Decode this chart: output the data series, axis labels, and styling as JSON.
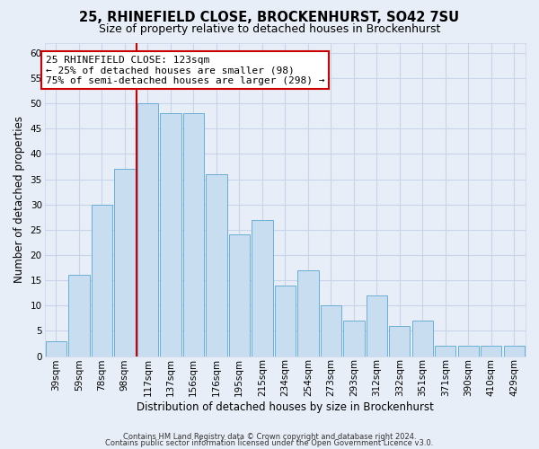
{
  "title": "25, RHINEFIELD CLOSE, BROCKENHURST, SO42 7SU",
  "subtitle": "Size of property relative to detached houses in Brockenhurst",
  "xlabel": "Distribution of detached houses by size in Brockenhurst",
  "ylabel": "Number of detached properties",
  "bar_labels": [
    "39sqm",
    "59sqm",
    "78sqm",
    "98sqm",
    "117sqm",
    "137sqm",
    "156sqm",
    "176sqm",
    "195sqm",
    "215sqm",
    "234sqm",
    "254sqm",
    "273sqm",
    "293sqm",
    "312sqm",
    "332sqm",
    "351sqm",
    "371sqm",
    "390sqm",
    "410sqm",
    "429sqm"
  ],
  "bar_values": [
    3,
    16,
    30,
    37,
    50,
    48,
    48,
    36,
    24,
    27,
    14,
    17,
    10,
    7,
    12,
    6,
    7,
    2,
    2,
    2,
    2
  ],
  "bar_color": "#c8ddf0",
  "bar_edge_color": "#6baed6",
  "vline_x_index": 4,
  "vline_color": "#cc0000",
  "ylim": [
    0,
    62
  ],
  "yticks": [
    0,
    5,
    10,
    15,
    20,
    25,
    30,
    35,
    40,
    45,
    50,
    55,
    60
  ],
  "annotation_title": "25 RHINEFIELD CLOSE: 123sqm",
  "annotation_line1": "← 25% of detached houses are smaller (98)",
  "annotation_line2": "75% of semi-detached houses are larger (298) →",
  "annotation_box_color": "#ffffff",
  "annotation_border_color": "#cc0000",
  "footer_line1": "Contains HM Land Registry data © Crown copyright and database right 2024.",
  "footer_line2": "Contains public sector information licensed under the Open Government Licence v3.0.",
  "background_color": "#e8eef8",
  "grid_color": "#c8d4e8",
  "title_fontsize": 10.5,
  "subtitle_fontsize": 9,
  "tick_fontsize": 7.5,
  "ylabel_fontsize": 8.5,
  "xlabel_fontsize": 8.5
}
